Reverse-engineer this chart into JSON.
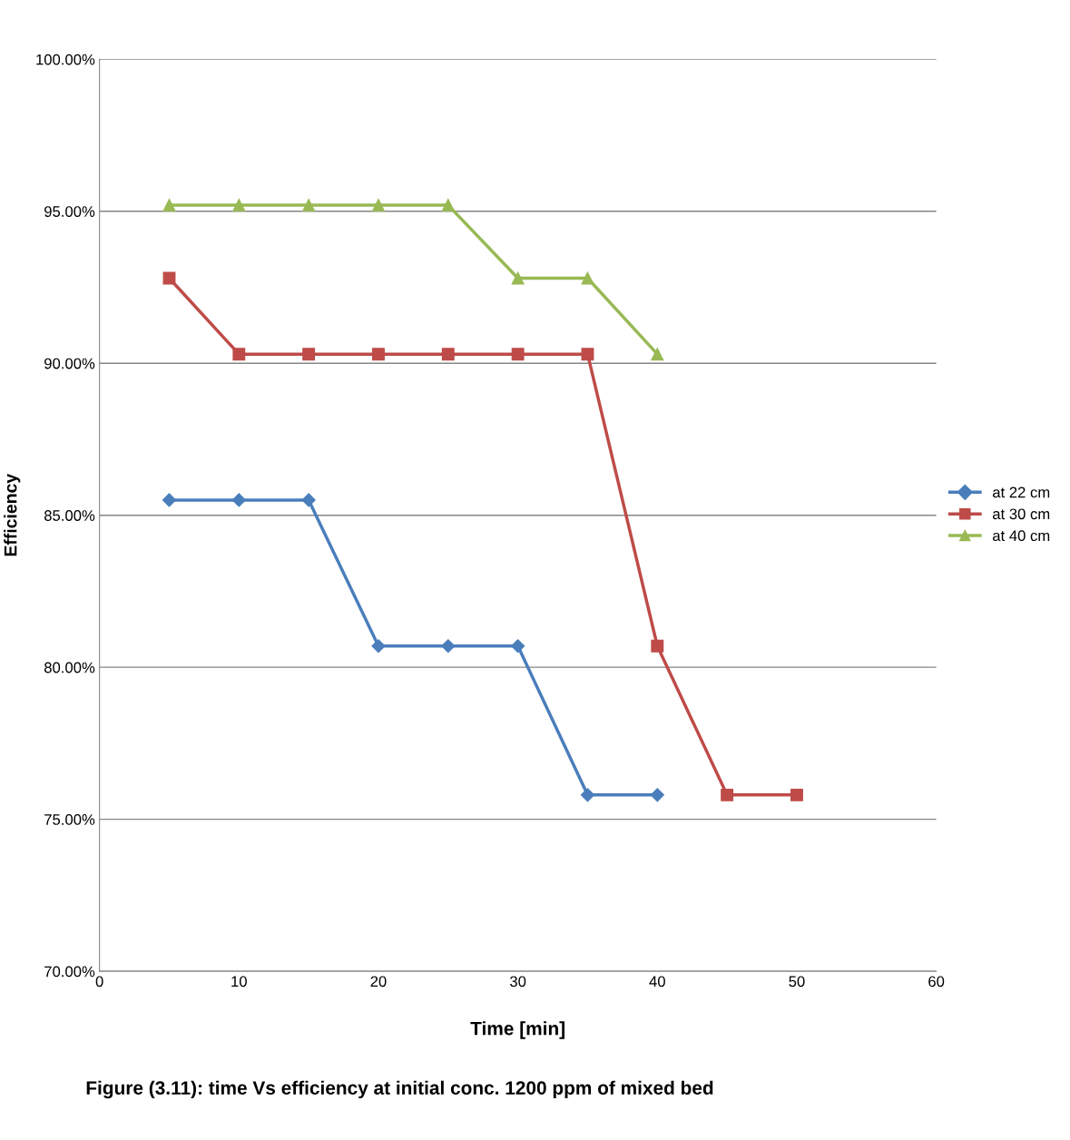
{
  "chart_data": {
    "type": "line",
    "xlabel": "Time [min]",
    "ylabel": "Efficiency",
    "annotations": [
      "Figure (3.11): time Vs efficiency at initial conc. 1200 ppm of mixed bed"
    ],
    "xlim": [
      0,
      60
    ],
    "xticks": [
      0,
      10,
      20,
      30,
      40,
      50,
      60
    ],
    "ylim": [
      70,
      100
    ],
    "yticks": [
      {
        "value": 70,
        "label": "70.00%"
      },
      {
        "value": 75,
        "label": "75.00%"
      },
      {
        "value": 80,
        "label": "80.00%"
      },
      {
        "value": 85,
        "label": "85.00%"
      },
      {
        "value": 90,
        "label": "90.00%"
      },
      {
        "value": 95,
        "label": "95.00%"
      },
      {
        "value": 100,
        "label": "100.00%"
      }
    ],
    "grid": "y",
    "legend": "right",
    "line_style": "solid",
    "series": [
      {
        "name": "at 22 cm",
        "color": "#4a7ebb",
        "marker": "diamond",
        "x": [
          5,
          10,
          15,
          20,
          25,
          30,
          35,
          40
        ],
        "values": [
          85.5,
          85.5,
          85.5,
          80.7,
          80.7,
          80.7,
          75.8,
          75.8
        ]
      },
      {
        "name": "at 30 cm",
        "color": "#be4b48",
        "marker": "square",
        "x": [
          5,
          10,
          15,
          20,
          25,
          30,
          35,
          40,
          45,
          50
        ],
        "values": [
          92.8,
          90.3,
          90.3,
          90.3,
          90.3,
          90.3,
          90.3,
          80.7,
          75.8,
          75.8
        ]
      },
      {
        "name": "at 40 cm",
        "color": "#98b954",
        "marker": "triangle",
        "x": [
          5,
          10,
          15,
          20,
          25,
          30,
          35,
          40
        ],
        "values": [
          95.2,
          95.2,
          95.2,
          95.2,
          95.2,
          92.8,
          92.8,
          90.3
        ]
      }
    ]
  }
}
